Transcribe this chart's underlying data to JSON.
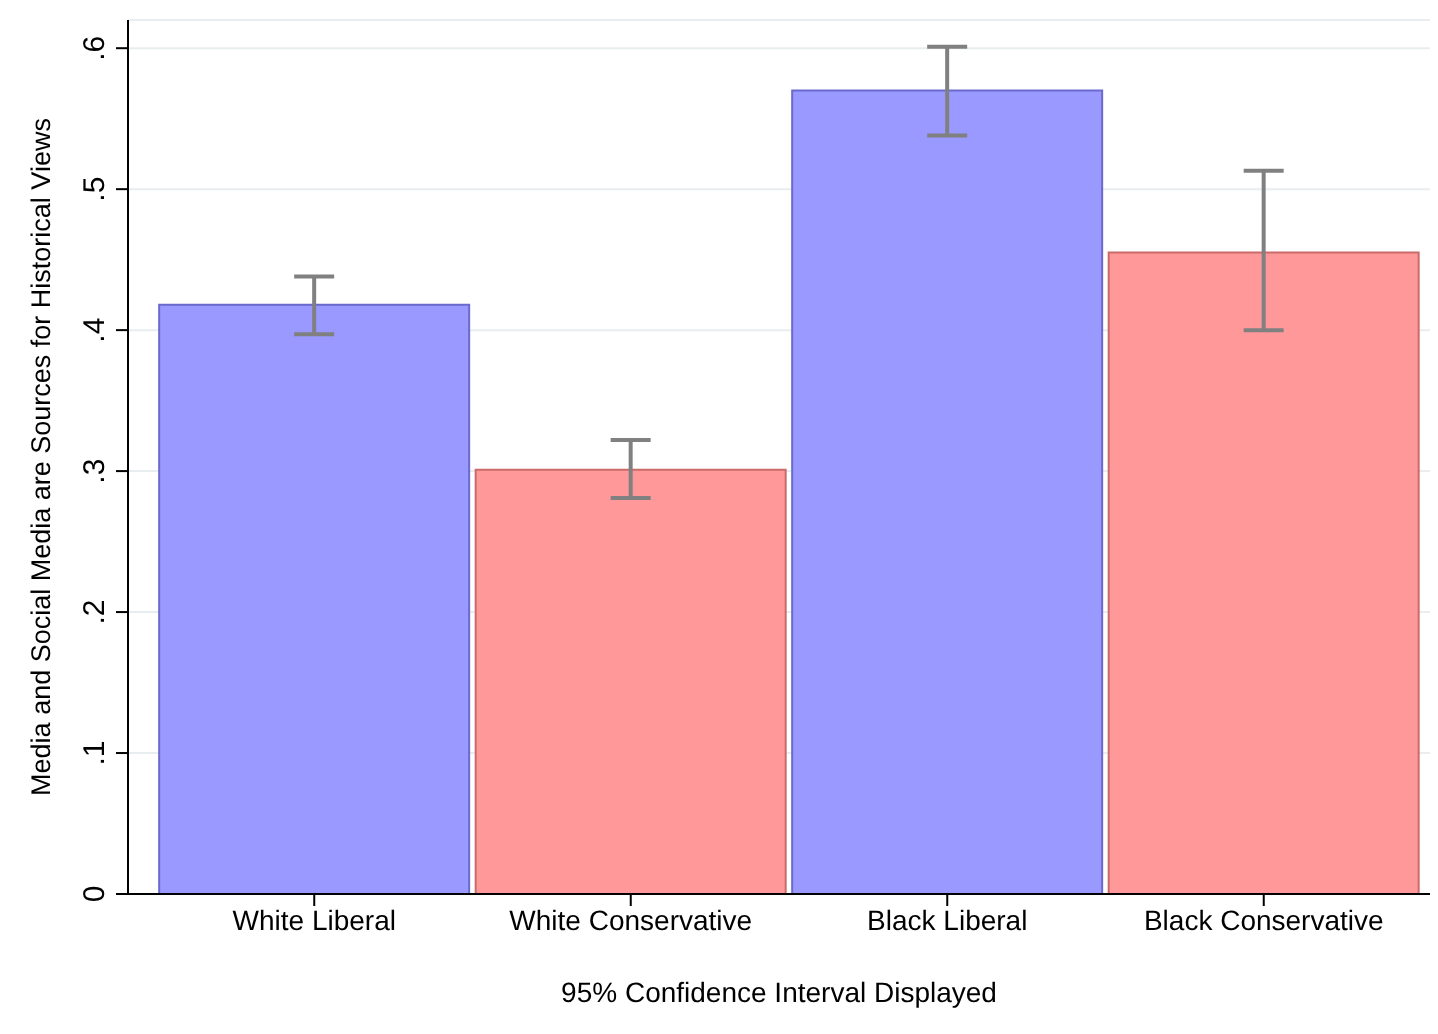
{
  "chart_data": {
    "type": "bar",
    "xlabel": "95% Confidence Interval Displayed",
    "ylabel": "Media and Social Media are Sources for Historical Views",
    "categories": [
      "White Liberal",
      "White Conservative",
      "Black Liberal",
      "Black Conservative"
    ],
    "values": [
      0.418,
      0.301,
      0.57,
      0.455
    ],
    "colors": [
      "#9999ff",
      "#ff9999",
      "#9999ff",
      "#ff9999"
    ],
    "errors": [
      [
        0.397,
        0.438
      ],
      [
        0.281,
        0.322
      ],
      [
        0.538,
        0.601
      ],
      [
        0.4,
        0.513
      ]
    ],
    "ylim": [
      0,
      0.62
    ],
    "yticks": [
      {
        "value": 0,
        "label": "0"
      },
      {
        "value": 0.1,
        "label": ".1"
      },
      {
        "value": 0.2,
        "label": ".2"
      },
      {
        "value": 0.3,
        "label": ".3"
      },
      {
        "value": 0.4,
        "label": ".4"
      },
      {
        "value": 0.5,
        "label": ".5"
      },
      {
        "value": 0.6,
        "label": ".6"
      }
    ],
    "grid": "y"
  }
}
